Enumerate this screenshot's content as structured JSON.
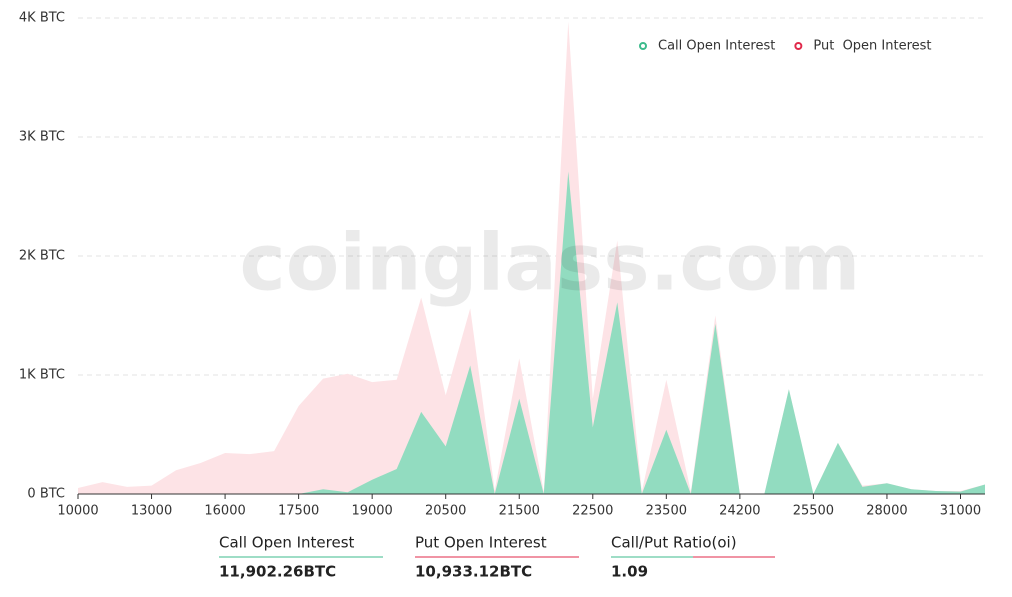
{
  "chart_data": {
    "type": "area",
    "watermark": "coinglass.com",
    "categories": [
      "10000",
      null,
      null,
      "13000",
      null,
      null,
      "16000",
      null,
      null,
      "17500",
      null,
      null,
      "19000",
      null,
      null,
      "20500",
      null,
      null,
      "21500",
      null,
      null,
      "22500",
      null,
      null,
      "23500",
      null,
      null,
      "24200",
      null,
      null,
      "25500",
      null,
      null,
      "28000",
      null,
      null,
      "31000",
      null
    ],
    "series": [
      {
        "name": "Put  Open Interest",
        "color": "#fde3e6",
        "legend_color": "#e0294a",
        "values": [
          50,
          100,
          60,
          70,
          200,
          260,
          345,
          335,
          360,
          740,
          970,
          1010,
          940,
          960,
          1650,
          830,
          1560,
          30,
          1140,
          20,
          3970,
          800,
          2130,
          20,
          960,
          20,
          1500,
          0,
          0,
          880,
          0,
          430,
          70,
          90,
          40,
          25,
          25,
          80
        ]
      },
      {
        "name": "Call Open Interest",
        "color": "#92dcc0",
        "legend_color": "#3dbb8c",
        "values": [
          0,
          0,
          0,
          0,
          0,
          0,
          0,
          0,
          0,
          0,
          40,
          15,
          120,
          210,
          690,
          400,
          1080,
          0,
          800,
          0,
          2710,
          560,
          1610,
          0,
          540,
          0,
          1430,
          0,
          0,
          880,
          0,
          430,
          60,
          90,
          40,
          25,
          20,
          80
        ]
      }
    ],
    "ylim": [
      0,
      4000
    ],
    "yticks": [
      {
        "value": 0,
        "label": "0 BTC"
      },
      {
        "value": 1000,
        "label": "1K BTC"
      },
      {
        "value": 2000,
        "label": "2K BTC"
      },
      {
        "value": 3000,
        "label": "3K BTC"
      },
      {
        "value": 4000,
        "label": "4K BTC"
      }
    ],
    "grid": true
  },
  "stats": [
    {
      "label": "Call Open Interest",
      "value": "11,902.26BTC"
    },
    {
      "label": "Put Open Interest",
      "value": "10,933.12BTC"
    },
    {
      "label": "Call/Put Ratio(oi)",
      "value": "1.09"
    }
  ]
}
